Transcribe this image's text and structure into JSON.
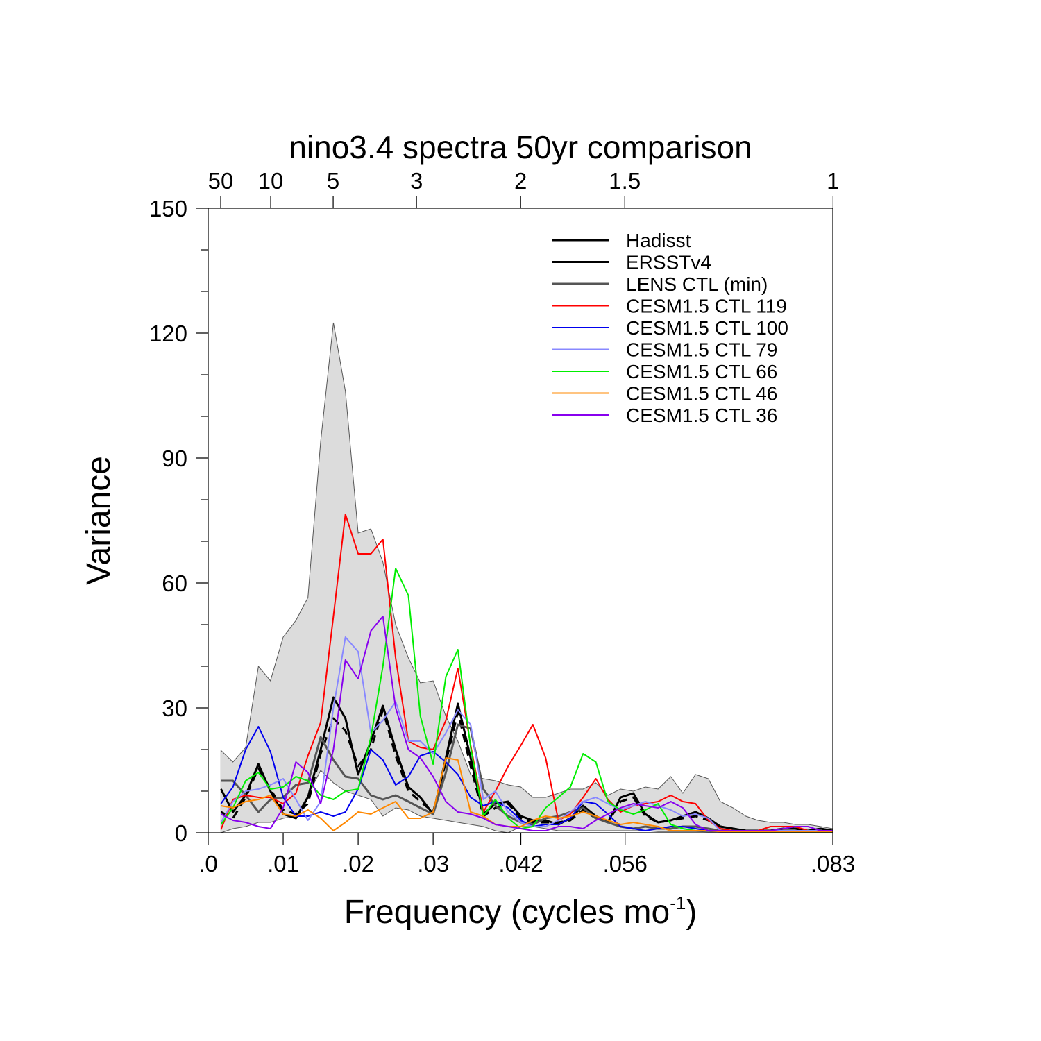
{
  "chart_data": {
    "type": "line",
    "title": "nino3.4 spectra 50yr comparison",
    "xlabel": "Frequency (cycles mo",
    "xlabel_sup": "-1",
    "xlabel_tail": ")",
    "ylabel": "Variance",
    "xlim": [
      0,
      0.0833
    ],
    "ylim": [
      0,
      150
    ],
    "x_ticks": [
      {
        "value": 0.0,
        "label": ".0"
      },
      {
        "value": 0.01,
        "label": ".01"
      },
      {
        "value": 0.02,
        "label": ".02"
      },
      {
        "value": 0.03,
        "label": ".03"
      },
      {
        "value": 0.0417,
        "label": ".042"
      },
      {
        "value": 0.0556,
        "label": ".056"
      },
      {
        "value": 0.0833,
        "label": ".083"
      }
    ],
    "top_ticks": [
      {
        "value": 0.001667,
        "label": "50"
      },
      {
        "value": 0.008333,
        "label": "10"
      },
      {
        "value": 0.016667,
        "label": "5"
      },
      {
        "value": 0.027778,
        "label": "3"
      },
      {
        "value": 0.041667,
        "label": "2"
      },
      {
        "value": 0.055556,
        "label": "1.5"
      },
      {
        "value": 0.083333,
        "label": "1"
      }
    ],
    "y_ticks": [
      0,
      30,
      60,
      90,
      120,
      150
    ],
    "y_minor_step": 10,
    "legend_position": "top-right",
    "band": {
      "name": "LENS CTL range",
      "color": "#dcdcdc",
      "x": [
        0.0017,
        0.0033,
        0.005,
        0.0067,
        0.0083,
        0.01,
        0.0117,
        0.0133,
        0.015,
        0.0167,
        0.0183,
        0.02,
        0.0217,
        0.0233,
        0.025,
        0.0267,
        0.0283,
        0.03,
        0.0317,
        0.0333,
        0.035,
        0.0367,
        0.0383,
        0.04,
        0.0417,
        0.0433,
        0.045,
        0.0467,
        0.0483,
        0.05,
        0.0517,
        0.0533,
        0.055,
        0.0567,
        0.0583,
        0.06,
        0.0617,
        0.0633,
        0.065,
        0.0667,
        0.0683,
        0.07,
        0.0717,
        0.0733,
        0.075,
        0.0767,
        0.0783,
        0.08,
        0.0817,
        0.0833
      ],
      "upper": [
        19.8,
        17.0,
        20.5,
        40.0,
        36.5,
        47.0,
        51.0,
        56.5,
        94.0,
        122.5,
        106.0,
        72.0,
        73.0,
        65.0,
        50.0,
        42.0,
        36.0,
        36.5,
        28.0,
        22.0,
        14.0,
        13.0,
        12.5,
        11.5,
        11.0,
        8.5,
        8.5,
        9.5,
        10.5,
        10.5,
        12.0,
        9.0,
        10.5,
        10.0,
        11.0,
        10.5,
        13.5,
        9.5,
        14.0,
        13.0,
        7.5,
        6.0,
        4.0,
        3.0,
        2.5,
        2.5,
        2.0,
        2.0,
        1.5,
        1.0
      ],
      "lower": [
        0.0,
        1.0,
        1.5,
        2.5,
        2.5,
        3.5,
        4.0,
        9.0,
        15.0,
        12.0,
        10.0,
        9.0,
        8.0,
        4.0,
        6.0,
        5.5,
        4.0,
        3.5,
        3.0,
        2.5,
        2.0,
        1.5,
        0.5,
        0.0,
        1.5,
        1.5,
        1.0,
        0.5,
        0.5,
        0.5,
        0.5,
        0.5,
        0.5,
        0.5,
        0.5,
        0.3,
        0.3,
        0.3,
        0.3,
        0.2,
        0.2,
        0.2,
        0.2,
        0.1,
        0.1,
        0.1,
        0.1,
        0.1,
        0.1,
        0.1
      ]
    },
    "x": [
      0.0017,
      0.0033,
      0.005,
      0.0067,
      0.0083,
      0.01,
      0.0117,
      0.0133,
      0.015,
      0.0167,
      0.0183,
      0.02,
      0.0217,
      0.0233,
      0.025,
      0.0267,
      0.0283,
      0.03,
      0.0317,
      0.0333,
      0.035,
      0.0367,
      0.0383,
      0.04,
      0.0417,
      0.0433,
      0.045,
      0.0467,
      0.0483,
      0.05,
      0.0517,
      0.0533,
      0.055,
      0.0567,
      0.0583,
      0.06,
      0.0617,
      0.0633,
      0.065,
      0.0667,
      0.0683,
      0.07,
      0.0717,
      0.0733,
      0.075,
      0.0767,
      0.0783,
      0.08,
      0.0817,
      0.0833
    ],
    "series": [
      {
        "name": "Hadisst",
        "color": "#000000",
        "dash": "",
        "width": 3,
        "values": [
          10.5,
          5.0,
          9.0,
          16.5,
          10.0,
          4.5,
          3.5,
          8.5,
          20.0,
          32.5,
          27.5,
          14.0,
          22.0,
          30.5,
          20.0,
          11.0,
          8.5,
          4.5,
          18.0,
          31.0,
          18.0,
          4.5,
          7.0,
          7.5,
          4.0,
          3.0,
          3.0,
          2.0,
          3.5,
          6.5,
          4.0,
          2.5,
          8.5,
          9.5,
          4.5,
          2.5,
          3.0,
          4.0,
          5.0,
          3.5,
          1.5,
          1.0,
          0.5,
          0.5,
          0.5,
          1.0,
          1.0,
          0.5,
          1.0,
          0.5
        ]
      },
      {
        "name": "ERSSTv4",
        "color": "#000000",
        "dash": "12 8",
        "width": 3,
        "values": [
          5.0,
          3.5,
          8.5,
          15.5,
          10.5,
          5.5,
          4.5,
          7.0,
          19.0,
          27.5,
          24.5,
          16.0,
          20.0,
          29.5,
          18.5,
          10.0,
          7.5,
          5.0,
          17.0,
          29.0,
          16.0,
          4.0,
          6.0,
          7.0,
          3.5,
          2.5,
          2.5,
          2.5,
          3.0,
          5.5,
          3.5,
          2.5,
          7.5,
          8.5,
          4.0,
          2.5,
          3.0,
          3.5,
          4.0,
          3.0,
          1.5,
          1.0,
          0.5,
          0.5,
          0.5,
          1.0,
          1.0,
          0.5,
          0.5,
          0.5
        ]
      },
      {
        "name": "LENS CTL (min)",
        "color": "#555555",
        "dash": "",
        "width": 3,
        "values": [
          12.5,
          12.5,
          9.0,
          5.0,
          8.0,
          8.5,
          11.5,
          12.0,
          23.0,
          17.5,
          13.5,
          13.0,
          9.0,
          8.0,
          9.0,
          7.5,
          6.0,
          4.5,
          14.5,
          26.0,
          25.0,
          10.5,
          6.5,
          4.0,
          2.5,
          2.0,
          3.5,
          4.0,
          5.0,
          6.0,
          3.5,
          2.5,
          1.5,
          1.0,
          1.5,
          1.0,
          1.0,
          1.5,
          1.5,
          1.0,
          0.5,
          0.5,
          0.3,
          0.3,
          0.3,
          0.3,
          0.3,
          0.3,
          0.3,
          0.3
        ]
      },
      {
        "name": "CESM1.5 CTL 119",
        "color": "#ff0000",
        "dash": "",
        "width": 2,
        "values": [
          0.8,
          8.0,
          9.0,
          8.5,
          8.5,
          7.0,
          9.5,
          18.5,
          26.5,
          52.0,
          76.5,
          67.0,
          67.0,
          70.5,
          42.0,
          22.0,
          20.5,
          20.0,
          27.0,
          39.5,
          21.0,
          5.0,
          10.0,
          16.0,
          21.0,
          26.0,
          18.0,
          3.0,
          4.5,
          8.5,
          13.0,
          8.0,
          5.0,
          6.5,
          7.0,
          7.5,
          9.0,
          7.5,
          7.0,
          3.0,
          1.0,
          0.5,
          0.5,
          0.5,
          1.5,
          1.5,
          1.5,
          0.5,
          0.5,
          0.5
        ]
      },
      {
        "name": "CESM1.5 CTL 100",
        "color": "#0000ee",
        "dash": "",
        "width": 2,
        "values": [
          7.0,
          11.0,
          20.0,
          25.5,
          19.5,
          8.5,
          4.0,
          4.0,
          5.0,
          4.0,
          5.0,
          10.5,
          20.0,
          17.5,
          11.5,
          13.5,
          18.5,
          19.5,
          17.0,
          14.0,
          8.5,
          6.5,
          7.5,
          6.0,
          3.0,
          1.5,
          2.0,
          2.0,
          3.5,
          7.5,
          7.0,
          4.5,
          1.5,
          1.0,
          0.5,
          1.0,
          1.5,
          1.5,
          1.0,
          0.5,
          0.3,
          0.3,
          0.3,
          0.3,
          0.3,
          0.3,
          0.3,
          0.3,
          0.3,
          0.3
        ]
      },
      {
        "name": "CESM1.5 CTL 79",
        "color": "#8888ff",
        "dash": "",
        "width": 2,
        "values": [
          2.5,
          7.5,
          10.0,
          10.5,
          11.5,
          13.0,
          8.0,
          3.0,
          7.5,
          30.0,
          47.0,
          43.5,
          24.0,
          27.0,
          31.5,
          22.0,
          22.0,
          19.0,
          24.0,
          29.5,
          26.0,
          8.0,
          10.0,
          5.0,
          2.5,
          1.5,
          1.5,
          3.0,
          5.0,
          7.5,
          8.5,
          7.0,
          5.5,
          6.5,
          7.5,
          6.5,
          5.5,
          4.0,
          4.5,
          3.5,
          0.5,
          0.5,
          0.5,
          0.5,
          0.5,
          0.5,
          0.5,
          0.5,
          0.5,
          0.5
        ]
      },
      {
        "name": "CESM1.5 CTL 66",
        "color": "#00ee00",
        "dash": "",
        "width": 2,
        "values": [
          2.0,
          6.0,
          12.5,
          14.5,
          10.5,
          11.0,
          13.5,
          12.5,
          9.0,
          8.0,
          10.0,
          10.5,
          23.0,
          40.0,
          63.5,
          57.0,
          28.0,
          16.5,
          37.5,
          44.0,
          20.5,
          4.0,
          8.0,
          3.5,
          1.0,
          1.5,
          6.0,
          8.5,
          11.0,
          19.0,
          17.0,
          7.5,
          5.5,
          4.5,
          5.5,
          7.0,
          2.0,
          1.0,
          0.5,
          0.5,
          0.5,
          0.3,
          0.3,
          0.3,
          0.3,
          0.3,
          0.3,
          0.3,
          0.3,
          0.3
        ]
      },
      {
        "name": "CESM1.5 CTL 46",
        "color": "#ff8800",
        "dash": "",
        "width": 2,
        "values": [
          6.5,
          6.0,
          7.5,
          8.0,
          9.0,
          4.5,
          4.0,
          5.5,
          3.5,
          0.5,
          2.5,
          5.0,
          4.5,
          6.0,
          7.5,
          3.5,
          3.5,
          5.0,
          18.0,
          17.5,
          5.0,
          4.0,
          2.0,
          1.5,
          1.5,
          3.0,
          4.0,
          3.5,
          4.0,
          5.0,
          4.0,
          3.0,
          2.0,
          2.5,
          2.0,
          1.5,
          0.5,
          0.5,
          0.5,
          0.5,
          0.3,
          0.3,
          0.3,
          0.3,
          0.3,
          0.3,
          0.3,
          0.3,
          0.3,
          0.3
        ]
      },
      {
        "name": "CESM1.5 CTL 36",
        "color": "#8800ee",
        "dash": "",
        "width": 2,
        "values": [
          4.5,
          3.0,
          2.5,
          1.5,
          1.0,
          6.0,
          17.0,
          14.5,
          7.0,
          20.0,
          41.5,
          37.0,
          48.5,
          52.0,
          30.0,
          20.0,
          18.0,
          13.5,
          7.5,
          5.0,
          4.5,
          3.5,
          2.0,
          1.5,
          1.0,
          0.5,
          0.5,
          1.5,
          1.5,
          1.0,
          3.0,
          4.5,
          6.0,
          7.0,
          6.5,
          6.0,
          7.5,
          6.0,
          2.0,
          0.5,
          0.5,
          0.5,
          0.5,
          0.5,
          0.5,
          1.0,
          1.5,
          1.5,
          0.5,
          0.5
        ]
      }
    ]
  }
}
